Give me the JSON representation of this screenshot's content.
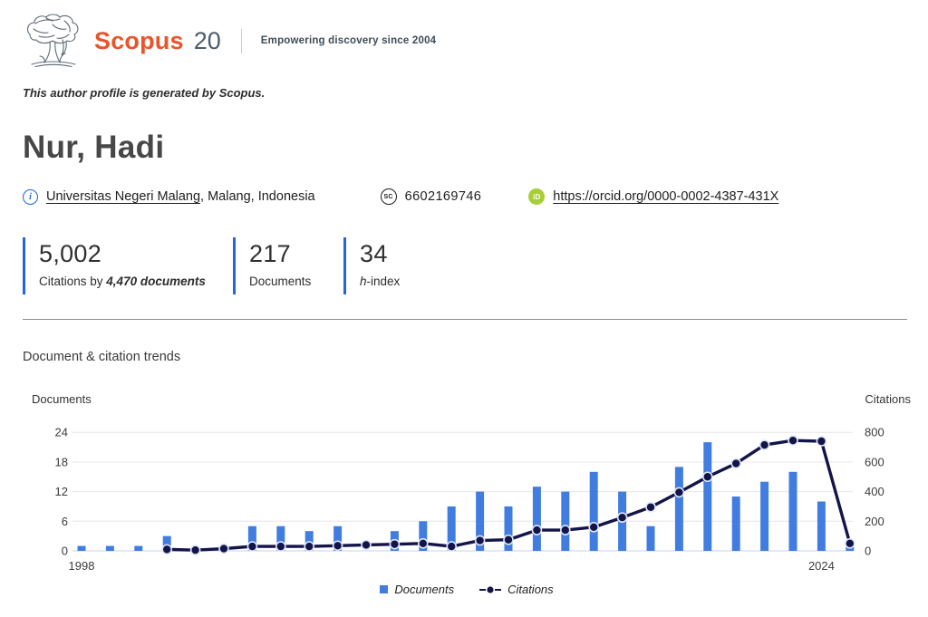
{
  "header": {
    "brand": "Scopus",
    "anniversary": "20",
    "tagline": "Empowering discovery since 2004"
  },
  "note": "This author profile is generated by Scopus.",
  "author": {
    "name": "Nur, Hadi",
    "affiliation_link": "Universitas Negeri Malang",
    "affiliation_rest": ", Malang, Indonesia",
    "scopus_id": "6602169746",
    "orcid_url": "https://orcid.org/0000-0002-4387-431X"
  },
  "metrics": {
    "citations": {
      "value": "5,002",
      "label_prefix": "Citations by ",
      "label_bold": "4,470 documents"
    },
    "documents": {
      "value": "217",
      "label": "Documents"
    },
    "h_index": {
      "value": "34",
      "label_h": "h",
      "label_suffix": "-index"
    }
  },
  "chart_data": {
    "type": "bar",
    "title": "Document & citation trends",
    "x": [
      1998,
      1999,
      2000,
      2001,
      2002,
      2003,
      2004,
      2005,
      2006,
      2007,
      2008,
      2009,
      2010,
      2011,
      2012,
      2013,
      2014,
      2015,
      2016,
      2017,
      2018,
      2019,
      2020,
      2021,
      2022,
      2023,
      2024,
      2025
    ],
    "series": [
      {
        "name": "Documents",
        "kind": "bar",
        "axis": "left",
        "values": [
          1,
          1,
          1,
          3,
          0,
          0,
          5,
          5,
          4,
          5,
          0,
          4,
          6,
          9,
          12,
          9,
          13,
          12,
          16,
          12,
          5,
          17,
          22,
          11,
          14,
          16,
          10,
          1
        ]
      },
      {
        "name": "Citations",
        "kind": "line",
        "axis": "right",
        "values": [
          null,
          null,
          null,
          10,
          5,
          15,
          30,
          30,
          30,
          35,
          40,
          45,
          50,
          30,
          70,
          75,
          140,
          140,
          160,
          225,
          295,
          395,
          500,
          590,
          715,
          745,
          740,
          50
        ]
      }
    ],
    "left_axis": {
      "label": "Documents",
      "ticks": [
        0,
        6,
        12,
        18,
        24
      ],
      "range": [
        0,
        24
      ]
    },
    "right_axis": {
      "label": "Citations",
      "ticks": [
        0,
        200,
        400,
        600,
        800
      ],
      "range": [
        0,
        800
      ]
    },
    "x_tick_labels": [
      "1998",
      "2024"
    ],
    "legend": [
      "Documents",
      "Citations"
    ],
    "colors": {
      "bar": "#417de0",
      "line": "#131449",
      "dot_ring": "#dde6f7",
      "grid": "#e6e6ec",
      "zero_line": "#c6d6f2"
    }
  }
}
